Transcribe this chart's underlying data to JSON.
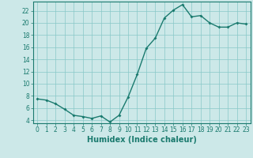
{
  "xlabel": "Humidex (Indice chaleur)",
  "x_values": [
    0,
    1,
    2,
    3,
    4,
    5,
    6,
    7,
    8,
    9,
    10,
    11,
    12,
    13,
    14,
    15,
    16,
    17,
    18,
    19,
    20,
    21,
    22,
    23
  ],
  "y_values": [
    7.5,
    7.3,
    6.7,
    5.8,
    4.8,
    4.6,
    4.3,
    4.7,
    3.7,
    4.8,
    7.8,
    11.5,
    15.8,
    17.5,
    20.8,
    22.1,
    23.0,
    21.0,
    21.2,
    20.0,
    19.3,
    19.3,
    20.0,
    19.8
  ],
  "line_color": "#1a7a6e",
  "marker_color": "#1a7a6e",
  "bg_color": "#cce8e8",
  "grid_color": "#88c8c8",
  "axis_color": "#1a7a6e",
  "ylim": [
    3.5,
    23.5
  ],
  "xlim": [
    -0.5,
    23.5
  ],
  "yticks": [
    4,
    6,
    8,
    10,
    12,
    14,
    16,
    18,
    20,
    22
  ],
  "xticks": [
    0,
    1,
    2,
    3,
    4,
    5,
    6,
    7,
    8,
    9,
    10,
    11,
    12,
    13,
    14,
    15,
    16,
    17,
    18,
    19,
    20,
    21,
    22,
    23
  ],
  "tick_label_size": 5.5,
  "xlabel_size": 7.0,
  "marker_size": 2.0,
  "line_width": 1.0
}
